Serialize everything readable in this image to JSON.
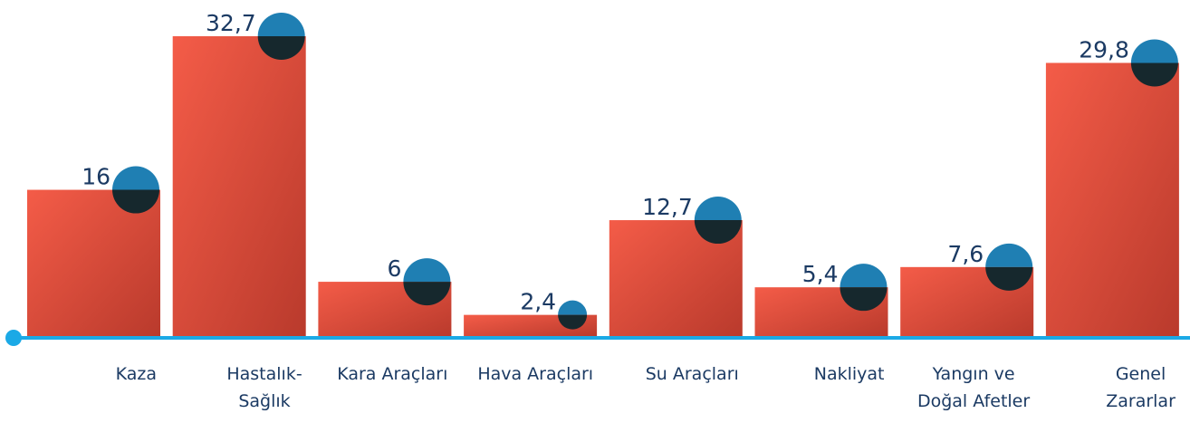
{
  "chart_data": {
    "type": "bar",
    "categories": [
      "Kaza",
      "Hastalık-\nSağlık",
      "Kara Araçları",
      "Hava Araçları",
      "Su Araçları",
      "Nakliyat",
      "Yangın ve\nDoğal Afetler",
      "Genel\nZararlar"
    ],
    "values": [
      16,
      32.7,
      6,
      2.4,
      12.7,
      5.4,
      7.6,
      29.8
    ],
    "value_labels": [
      "16",
      "32,7",
      "6",
      "2,4",
      "12,7",
      "5,4",
      "7,6",
      "29,8"
    ],
    "color": "#e9533f"
  }
}
